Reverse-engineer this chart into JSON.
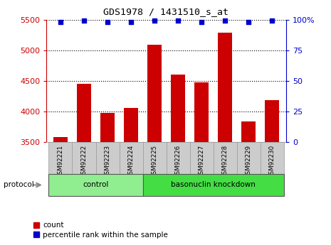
{
  "title": "GDS1978 / 1431510_s_at",
  "samples": [
    "GSM92221",
    "GSM92222",
    "GSM92223",
    "GSM92224",
    "GSM92225",
    "GSM92226",
    "GSM92227",
    "GSM92228",
    "GSM92229",
    "GSM92230"
  ],
  "counts": [
    3580,
    4450,
    3980,
    4060,
    5090,
    4600,
    4480,
    5290,
    3840,
    4180
  ],
  "percentile_ranks": [
    98,
    99,
    98,
    98,
    99,
    99,
    98,
    99,
    98,
    99
  ],
  "bar_color": "#cc0000",
  "dot_color": "#0000cc",
  "ylim_left": [
    3500,
    5500
  ],
  "ylim_right": [
    0,
    100
  ],
  "yticks_left": [
    3500,
    4000,
    4500,
    5000,
    5500
  ],
  "yticks_right": [
    0,
    25,
    50,
    75,
    100
  ],
  "ytick_labels_right": [
    "0",
    "25",
    "50",
    "75",
    "100%"
  ],
  "groups": [
    {
      "label": "control",
      "start": 0,
      "end": 3,
      "color": "#90ee90"
    },
    {
      "label": "basonuclin knockdown",
      "start": 4,
      "end": 9,
      "color": "#44dd44"
    }
  ],
  "protocol_label": "protocol",
  "legend_count_label": "count",
  "legend_pct_label": "percentile rank within the sample",
  "bg_color": "#ffffff",
  "tick_area_color": "#cccccc",
  "title_color": "#000000",
  "left_tick_color": "#cc0000",
  "right_tick_color": "#0000cc"
}
